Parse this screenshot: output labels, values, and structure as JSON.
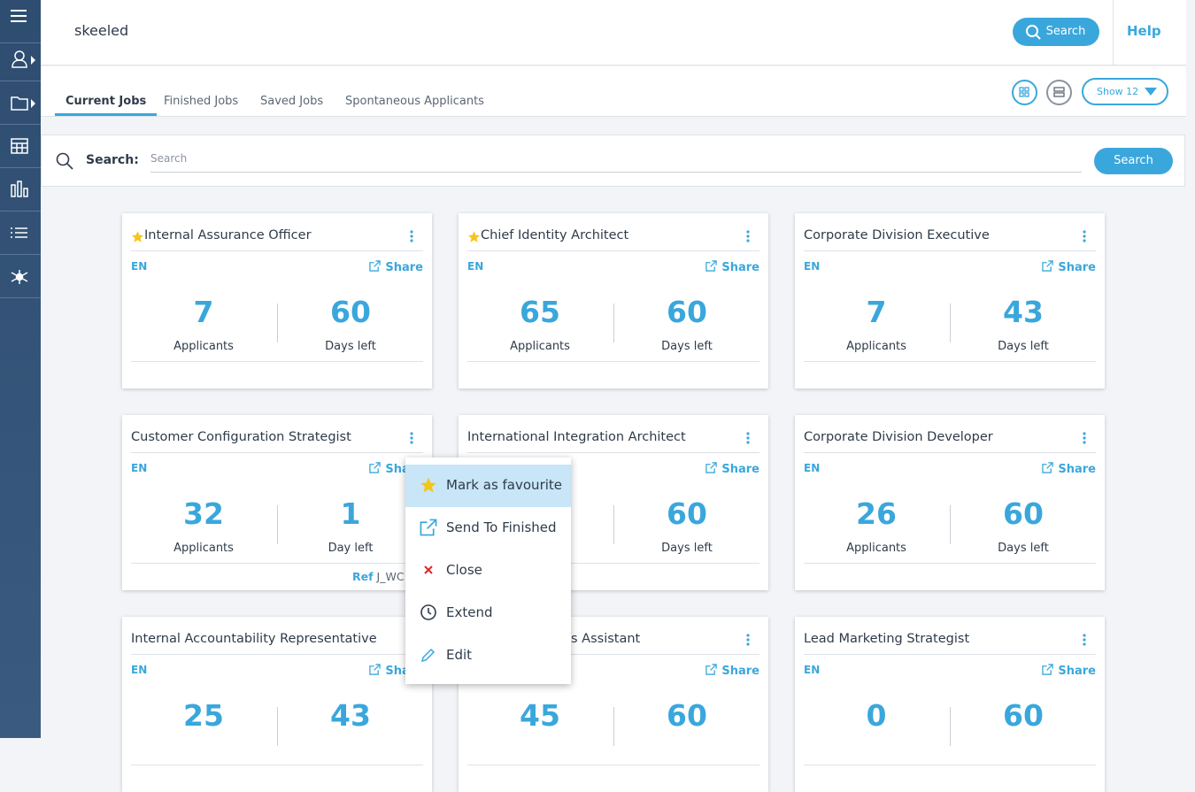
{
  "header": {
    "logo": "skeeled",
    "search_button": "Search",
    "help": "Help"
  },
  "tabs": [
    "Current Jobs",
    "Finished Jobs",
    "Saved Jobs",
    "Spontaneous Applicants"
  ],
  "show_button": "Show 12",
  "search": {
    "label": "Search:",
    "placeholder": "Search",
    "button": "Search"
  },
  "jobs": [
    {
      "title": "Internal Assurance Officer",
      "favourite": true,
      "lang": "EN",
      "share": "Share",
      "applicants": "7",
      "applicants_label": "Applicants",
      "days": "60",
      "days_label": "Days left"
    },
    {
      "title": "Chief Identity Architect",
      "favourite": true,
      "lang": "EN",
      "share": "Share",
      "applicants": "65",
      "applicants_label": "Applicants",
      "days": "60",
      "days_label": "Days left"
    },
    {
      "title": "Corporate Division Executive",
      "favourite": false,
      "lang": "EN",
      "share": "Share",
      "applicants": "7",
      "applicants_label": "Applicants",
      "days": "43",
      "days_label": "Days left"
    },
    {
      "title": "Customer Configuration Strategist",
      "favourite": false,
      "lang": "EN",
      "share": "Share",
      "applicants": "32",
      "applicants_label": "Applicants",
      "days": "1",
      "days_label": "Day left",
      "ref_label": "Ref",
      "ref": "J_WC"
    },
    {
      "title": "International Integration Architect",
      "favourite": false,
      "share": "Share",
      "days": "60",
      "days_label": "Days left"
    },
    {
      "title": "Corporate Division Developer",
      "favourite": false,
      "lang": "EN",
      "share": "Share",
      "applicants": "26",
      "applicants_label": "Applicants",
      "days": "60",
      "days_label": "Days left"
    },
    {
      "title": "Internal Accountability Representative",
      "favourite": false,
      "lang": "EN",
      "share": "Share",
      "applicants": "25",
      "days": "43"
    },
    {
      "title": "s Assistant",
      "favourite": false,
      "share": "Share",
      "applicants": "45",
      "days": "60"
    },
    {
      "title": "Lead Marketing Strategist",
      "favourite": false,
      "lang": "EN",
      "share": "Share",
      "applicants": "0",
      "days": "60"
    }
  ],
  "menu": [
    "Mark as favourite",
    "Send To Finished",
    "Close",
    "Extend",
    "Edit"
  ]
}
